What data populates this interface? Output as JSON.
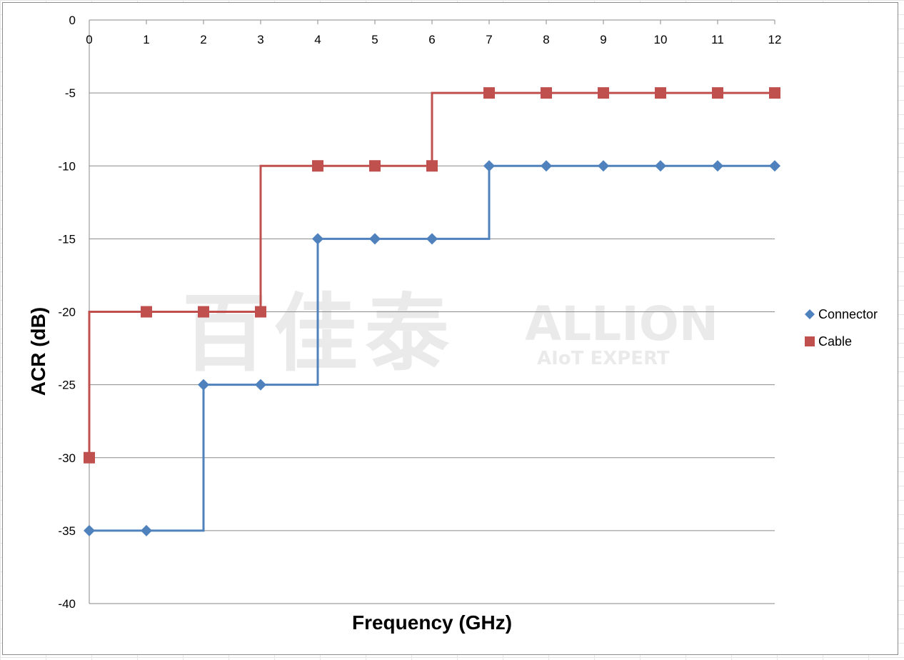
{
  "chart_data": {
    "type": "line",
    "step": true,
    "xlabel": "Frequency (GHz)",
    "ylabel": "ACR (dB)",
    "xlim": [
      0,
      12
    ],
    "ylim": [
      -40,
      0
    ],
    "x_ticks": [
      0,
      1,
      2,
      3,
      4,
      5,
      6,
      7,
      8,
      9,
      10,
      11,
      12
    ],
    "y_ticks": [
      0,
      -5,
      -10,
      -15,
      -20,
      -25,
      -30,
      -35,
      -40
    ],
    "x_axis_position": "top",
    "grid": "horizontal",
    "legend_position": "right",
    "series": [
      {
        "name": "Connector",
        "color": "#4f81bd",
        "marker": "diamond",
        "x": [
          0,
          1,
          2,
          3,
          4,
          5,
          6,
          7,
          8,
          9,
          10,
          11,
          12
        ],
        "y": [
          -35,
          -35,
          -25,
          -25,
          -15,
          -15,
          -15,
          -10,
          -10,
          -10,
          -10,
          -10,
          -10
        ]
      },
      {
        "name": "Cable",
        "color": "#c0504d",
        "marker": "square",
        "x": [
          0,
          1,
          2,
          3,
          4,
          5,
          6,
          7,
          8,
          9,
          10,
          11,
          12
        ],
        "y": [
          -30,
          -20,
          -20,
          -20,
          -10,
          -10,
          -10,
          -5,
          -5,
          -5,
          -5,
          -5,
          -5
        ]
      }
    ]
  },
  "watermark": {
    "cjk": "百佳泰",
    "brand": "ALLION",
    "tagline": "AIoT EXPERT"
  }
}
